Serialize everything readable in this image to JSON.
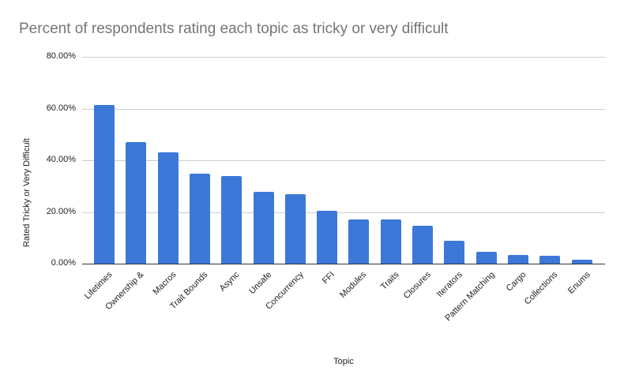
{
  "chart_data": {
    "type": "bar",
    "title": "Percent of respondents rating each topic as tricky or very difficult",
    "xlabel": "Topic",
    "ylabel": "Rated Tricky or Very Difficult",
    "ylim": [
      0,
      80
    ],
    "yticks": [
      "0.00%",
      "20.00%",
      "40.00%",
      "60.00%",
      "80.00%"
    ],
    "grid": true,
    "legend": "none",
    "bar_color": "#3c78d8",
    "categories": [
      "Lifetimes",
      "Ownership &",
      "Macros",
      "Trait Bounds",
      "Async",
      "Unsafe",
      "Concurrency",
      "FFI",
      "Modules",
      "Traits",
      "Closures",
      "Iterators",
      "Pattern Matching",
      "Cargo",
      "Collections",
      "Enums"
    ],
    "values": [
      61.4,
      47.0,
      43.0,
      34.8,
      33.9,
      27.8,
      26.9,
      20.5,
      17.1,
      17.1,
      14.7,
      8.9,
      4.6,
      3.4,
      3.1,
      1.5
    ]
  }
}
